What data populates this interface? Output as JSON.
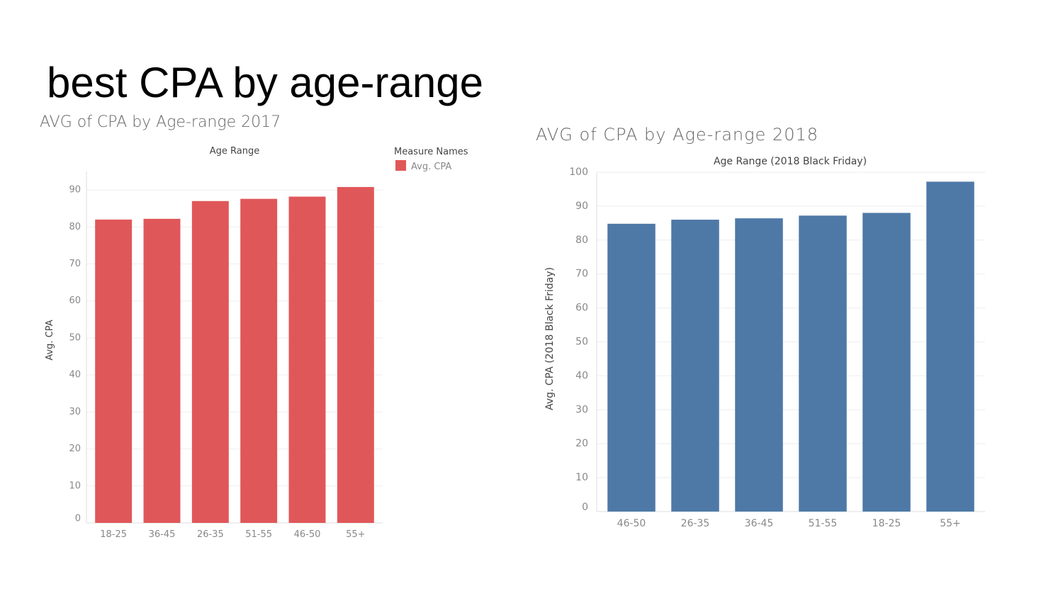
{
  "slide": {
    "title": "best CPA by age-range"
  },
  "legend": {
    "title": "Measure Names",
    "item": "Avg. CPA"
  },
  "chart_data": [
    {
      "type": "bar",
      "title": "AVG  of CPA by Age-range 2017",
      "xlabel": "Age Range",
      "ylabel": "Avg. CPA",
      "categories": [
        "18-25",
        "36-45",
        "26-35",
        "51-55",
        "46-50",
        "55+"
      ],
      "values": [
        82,
        82.2,
        87,
        87.6,
        88.2,
        90.8
      ],
      "yticks": [
        0,
        10,
        20,
        30,
        40,
        50,
        60,
        70,
        80,
        90
      ],
      "ylim": [
        0,
        95
      ],
      "color": "#e05759",
      "legend": "top-right",
      "grid": true
    },
    {
      "type": "bar",
      "title": "AVG  of CPA by Age-range 2018",
      "xlabel": "Age Range (2018 Black Friday)",
      "ylabel": "Avg. CPA (2018 Black Friday)",
      "categories": [
        "46-50",
        "26-35",
        "36-45",
        "51-55",
        "18-25",
        "55+"
      ],
      "values": [
        84.8,
        86,
        86.4,
        87.2,
        88,
        97.2
      ],
      "yticks": [
        0,
        10,
        20,
        30,
        40,
        50,
        60,
        70,
        80,
        90,
        100
      ],
      "ylim": [
        0,
        100
      ],
      "color": "#4e79a7",
      "grid": true
    }
  ]
}
